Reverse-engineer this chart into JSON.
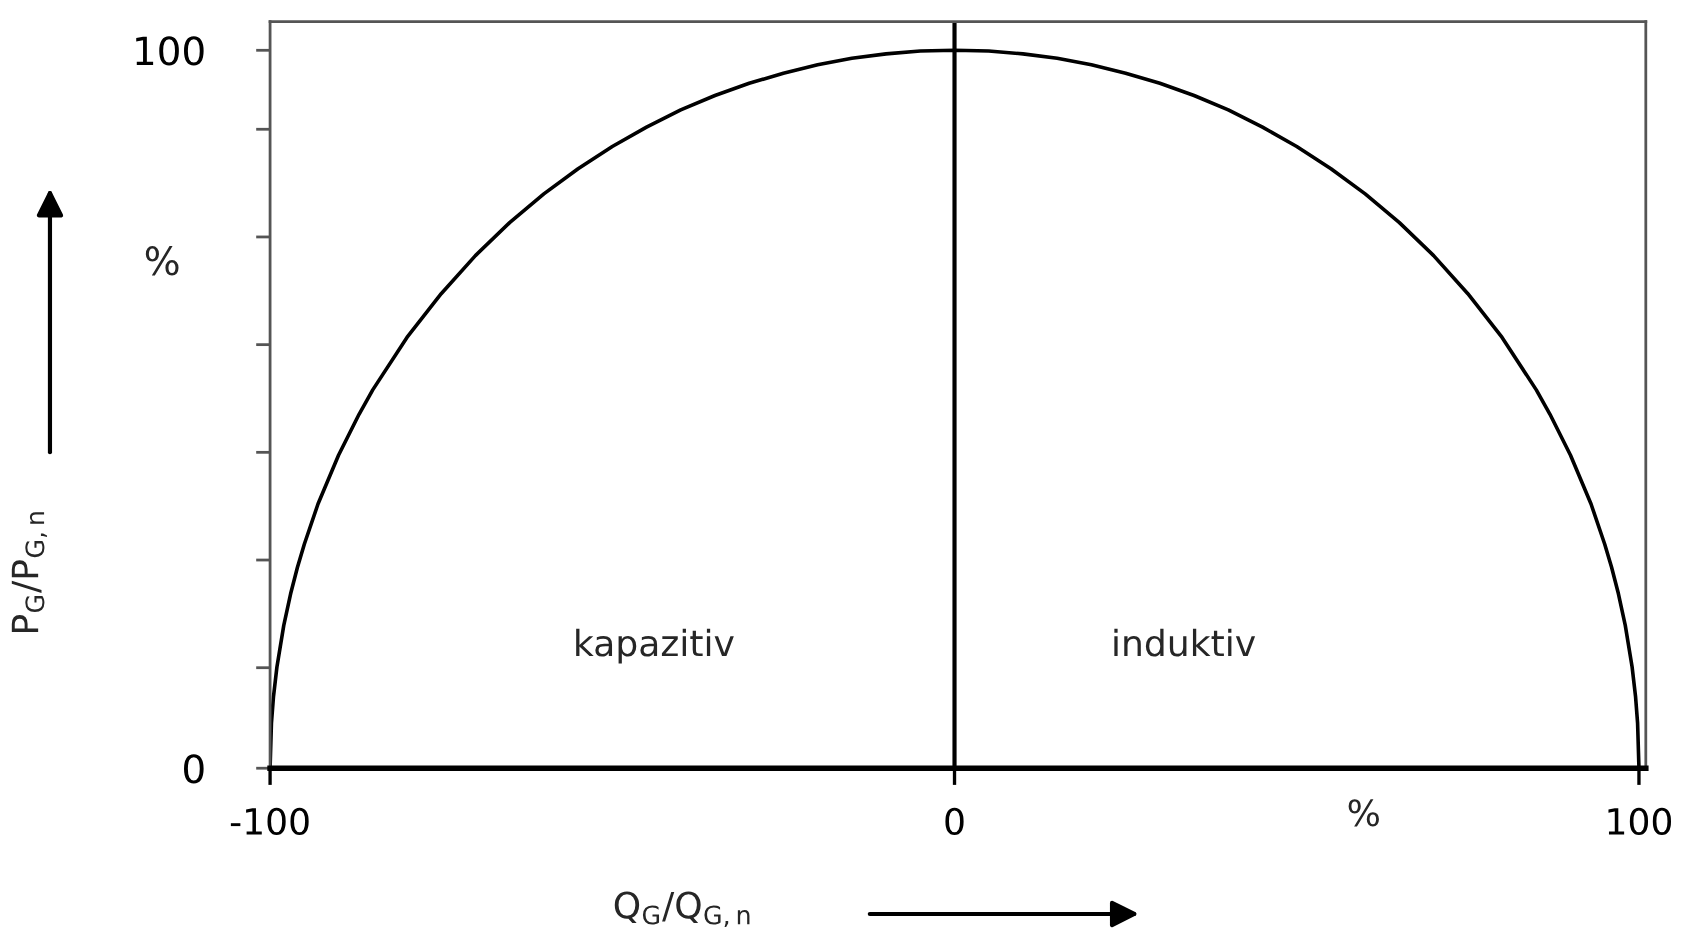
{
  "chart_data": {
    "type": "line",
    "xlabel": "Q$_{G}$/Q$_{G,n}$",
    "ylabel": "P$_{G}$/P$_{G,n}$",
    "series": [
      {
        "color": "#000000",
        "x": [
          -100,
          -99.8,
          -99.5,
          -99,
          -98,
          -97,
          -96,
          -95,
          -93,
          -90,
          -87,
          -85,
          -80,
          -75,
          -70,
          -65,
          -60,
          -55,
          -50,
          -45,
          -40,
          -35,
          -30,
          -25,
          -20,
          -15,
          -10,
          -5,
          0,
          5,
          10,
          15,
          20,
          25,
          30,
          35,
          40,
          45,
          50,
          55,
          60,
          65,
          70,
          75,
          80,
          85,
          87,
          90,
          93,
          95,
          96,
          97,
          98,
          99,
          99.5,
          99.8,
          100
        ],
        "values": [
          0,
          6.3,
          10.0,
          14.1,
          19.9,
          24.3,
          28.0,
          31.2,
          36.8,
          43.6,
          49.3,
          52.7,
          60.0,
          66.1,
          71.4,
          76.0,
          80.0,
          83.5,
          86.6,
          89.3,
          91.7,
          93.7,
          95.4,
          96.8,
          98.0,
          98.9,
          99.5,
          99.9,
          100,
          99.9,
          99.5,
          98.9,
          98.0,
          96.8,
          95.4,
          93.7,
          91.7,
          89.3,
          86.6,
          83.5,
          80.0,
          76.0,
          71.4,
          66.1,
          60.0,
          52.7,
          49.3,
          43.6,
          36.8,
          31.2,
          28.0,
          24.3,
          19.9,
          14.1,
          10.0,
          6.3,
          0
        ]
      }
    ],
    "xlim": [
      -100,
      101
    ],
    "xticks": [
      -100,
      0,
      100
    ],
    "ylim": [
      0,
      104
    ],
    "yticks": [
      0,
      {
        "value": 14,
        "label": null
      },
      {
        "value": 29,
        "label": null
      },
      {
        "value": 44,
        "label": null
      },
      {
        "value": 59,
        "label": null
      },
      {
        "value": 74,
        "label": null
      },
      {
        "value": 89,
        "label": null
      },
      100
    ],
    "ref_lines": [
      {
        "axis": "x",
        "value": 0,
        "color": "#000000"
      }
    ],
    "annotations": [
      "kapazitiv",
      "induktiv",
      "%",
      "%"
    ],
    "grid": false,
    "legend": false,
    "marker": "none",
    "line_style": "solid"
  }
}
